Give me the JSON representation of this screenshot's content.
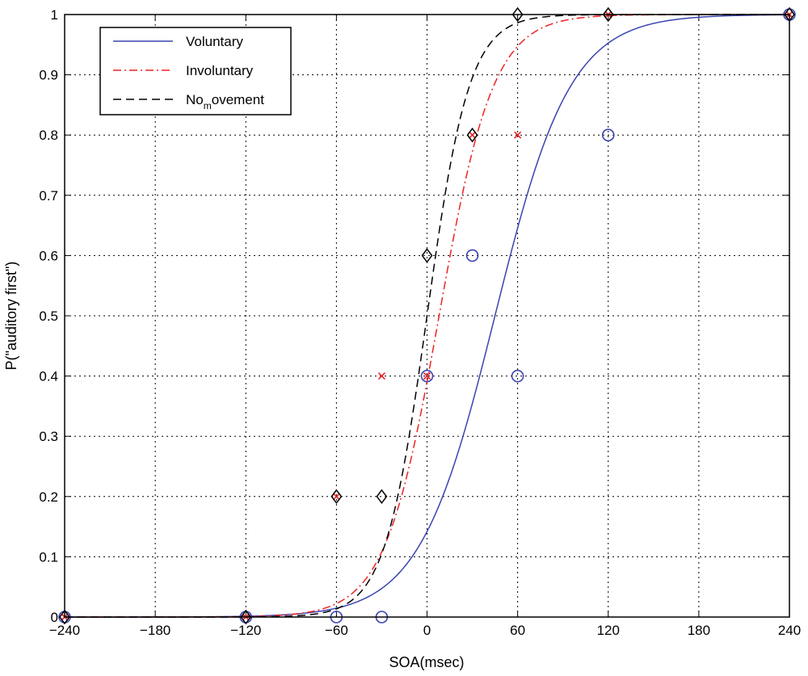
{
  "chart_data": {
    "type": "line",
    "title": "",
    "xlabel": "SOA(msec)",
    "ylabel": "P(\"auditory first\")",
    "xlim": [
      -240,
      240
    ],
    "ylim": [
      0,
      1
    ],
    "xticks": [
      -240,
      -180,
      -120,
      -60,
      0,
      60,
      120,
      180,
      240
    ],
    "yticks": [
      0,
      0.1,
      0.2,
      0.3,
      0.4,
      0.5,
      0.6,
      0.7,
      0.8,
      0.9,
      1
    ],
    "xtick_labels": [
      "−240",
      "−180",
      "−120",
      "−60",
      "0",
      "60",
      "120",
      "180",
      "240"
    ],
    "ytick_labels": [
      "0",
      "0.1",
      "0.2",
      "0.3",
      "0.4",
      "0.5",
      "0.6",
      "0.7",
      "0.8",
      "0.9",
      "1"
    ],
    "grid": true,
    "legend": {
      "position": "top-left",
      "entries": [
        "Voluntary",
        "Involuntary",
        "No movement"
      ],
      "no_movement_prefix": "No",
      "no_movement_sub": "m",
      "no_movement_suffix": "ovement"
    },
    "series": [
      {
        "name": "Voluntary",
        "color": "#3a44b0",
        "line_style": "solid",
        "marker": "circle",
        "fit": {
          "mu": 45,
          "s": 25
        },
        "points": [
          {
            "x": -240,
            "y": 0
          },
          {
            "x": -120,
            "y": 0
          },
          {
            "x": -60,
            "y": 0
          },
          {
            "x": -30,
            "y": 0
          },
          {
            "x": 0,
            "y": 0.4
          },
          {
            "x": 30,
            "y": 0.6
          },
          {
            "x": 60,
            "y": 0.4
          },
          {
            "x": 120,
            "y": 0.8
          },
          {
            "x": 240,
            "y": 1
          }
        ]
      },
      {
        "name": "Involuntary",
        "color": "#ee2222",
        "line_style": "dashdot",
        "marker": "x",
        "fit": {
          "mu": 8,
          "s": 18
        },
        "points": [
          {
            "x": -240,
            "y": 0
          },
          {
            "x": -120,
            "y": 0
          },
          {
            "x": -60,
            "y": 0.2
          },
          {
            "x": -30,
            "y": 0.4
          },
          {
            "x": 0,
            "y": 0.4
          },
          {
            "x": 30,
            "y": 0.8
          },
          {
            "x": 60,
            "y": 0.8
          },
          {
            "x": 120,
            "y": 1
          },
          {
            "x": 240,
            "y": 1
          }
        ]
      },
      {
        "name": "No movement",
        "color": "#000000",
        "line_style": "dashed",
        "marker": "diamond",
        "fit": {
          "mu": 0,
          "s": 14
        },
        "points": [
          {
            "x": -240,
            "y": 0
          },
          {
            "x": -120,
            "y": 0
          },
          {
            "x": -60,
            "y": 0.2
          },
          {
            "x": -30,
            "y": 0.2
          },
          {
            "x": 0,
            "y": 0.6
          },
          {
            "x": 30,
            "y": 0.8
          },
          {
            "x": 60,
            "y": 1
          },
          {
            "x": 120,
            "y": 1
          },
          {
            "x": 240,
            "y": 1
          }
        ]
      }
    ]
  }
}
